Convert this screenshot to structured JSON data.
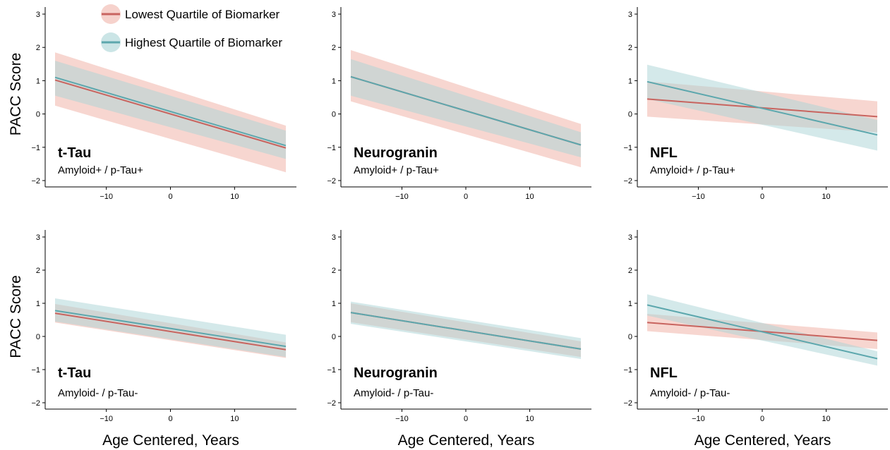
{
  "colors": {
    "low_line": "#c8645f",
    "low_band": "#f0b4aa",
    "high_line": "#5ca7ad",
    "high_band": "#a9d3d6"
  },
  "legend": {
    "items": [
      {
        "label": "Lowest Quartile of Biomarker",
        "series": "low"
      },
      {
        "label": "Highest Quartile of Biomarker",
        "series": "high"
      }
    ]
  },
  "chart_data": [
    {
      "type": "line",
      "title": "t-Tau",
      "subtitle": "Amyloid+ / p-Tau+",
      "ylabel": "PACC Score",
      "xlabel": "",
      "xlim": [
        -18,
        18
      ],
      "ylim": [
        -2,
        3
      ],
      "xticks": [
        -10,
        0,
        10
      ],
      "yticks": [
        -2,
        -1,
        0,
        1,
        2,
        3
      ],
      "series": [
        {
          "key": "low",
          "x": [
            -18,
            18
          ],
          "y": [
            1.02,
            -1.02
          ],
          "lower": [
            0.25,
            -1.75
          ],
          "upper": [
            1.85,
            -0.35
          ]
        },
        {
          "key": "high",
          "x": [
            -18,
            18
          ],
          "y": [
            1.1,
            -0.95
          ],
          "lower": [
            0.55,
            -1.35
          ],
          "upper": [
            1.6,
            -0.5
          ]
        }
      ]
    },
    {
      "type": "line",
      "title": "Neurogranin",
      "subtitle": "Amyloid+ / p-Tau+",
      "ylabel": "",
      "xlabel": "",
      "xlim": [
        -18,
        18
      ],
      "ylim": [
        -2,
        3
      ],
      "xticks": [
        -10,
        0,
        10
      ],
      "yticks": [
        -2,
        -1,
        0,
        1,
        2,
        3
      ],
      "series": [
        {
          "key": "low",
          "x": [
            -18,
            18
          ],
          "y": [
            1.12,
            -0.93
          ],
          "lower": [
            0.38,
            -1.6
          ],
          "upper": [
            1.92,
            -0.3
          ]
        },
        {
          "key": "high",
          "x": [
            -18,
            18
          ],
          "y": [
            1.12,
            -0.93
          ],
          "lower": [
            0.55,
            -1.3
          ],
          "upper": [
            1.65,
            -0.55
          ]
        }
      ]
    },
    {
      "type": "line",
      "title": "NFL",
      "subtitle": "Amyloid+ / p-Tau+",
      "ylabel": "",
      "xlabel": "",
      "xlim": [
        -18,
        18
      ],
      "ylim": [
        -2,
        3
      ],
      "xticks": [
        -10,
        0,
        10
      ],
      "yticks": [
        -2,
        -1,
        0,
        1,
        2,
        3
      ],
      "series": [
        {
          "key": "low",
          "x": [
            -18,
            18
          ],
          "y": [
            0.45,
            -0.08
          ],
          "lower": [
            -0.08,
            -0.55
          ],
          "upper": [
            0.98,
            0.38
          ]
        },
        {
          "key": "high",
          "x": [
            -18,
            18
          ],
          "y": [
            0.97,
            -0.63
          ],
          "lower": [
            0.45,
            -1.1
          ],
          "upper": [
            1.48,
            -0.18
          ]
        }
      ]
    },
    {
      "type": "line",
      "title": "t-Tau",
      "subtitle": "Amyloid- / p-Tau-",
      "ylabel": "PACC Score",
      "xlabel": "Age Centered,  Years",
      "xlim": [
        -18,
        18
      ],
      "ylim": [
        -2,
        3
      ],
      "xticks": [
        -10,
        0,
        10
      ],
      "yticks": [
        -2,
        -1,
        0,
        1,
        2,
        3
      ],
      "series": [
        {
          "key": "low",
          "x": [
            -18,
            18
          ],
          "y": [
            0.7,
            -0.4
          ],
          "lower": [
            0.42,
            -0.65
          ],
          "upper": [
            0.98,
            -0.18
          ]
        },
        {
          "key": "high",
          "x": [
            -18,
            18
          ],
          "y": [
            0.78,
            -0.3
          ],
          "lower": [
            0.45,
            -0.62
          ],
          "upper": [
            1.15,
            0.05
          ]
        }
      ]
    },
    {
      "type": "line",
      "title": "Neurogranin",
      "subtitle": "Amyloid- / p-Tau-",
      "ylabel": "",
      "xlabel": "Age Centered,  Years",
      "xlim": [
        -18,
        18
      ],
      "ylim": [
        -2,
        3
      ],
      "xticks": [
        -10,
        0,
        10
      ],
      "yticks": [
        -2,
        -1,
        0,
        1,
        2,
        3
      ],
      "series": [
        {
          "key": "low",
          "x": [
            -18,
            18
          ],
          "y": [
            0.72,
            -0.38
          ],
          "lower": [
            0.43,
            -0.62
          ],
          "upper": [
            1.0,
            -0.15
          ]
        },
        {
          "key": "high",
          "x": [
            -18,
            18
          ],
          "y": [
            0.72,
            -0.38
          ],
          "lower": [
            0.38,
            -0.68
          ],
          "upper": [
            1.05,
            -0.05
          ]
        }
      ]
    },
    {
      "type": "line",
      "title": "NFL",
      "subtitle": "Amyloid- / p-Tau-",
      "ylabel": "",
      "xlabel": "Age Centered,  Years",
      "xlim": [
        -18,
        18
      ],
      "ylim": [
        -2,
        3
      ],
      "xticks": [
        -10,
        0,
        10
      ],
      "yticks": [
        -2,
        -1,
        0,
        1,
        2,
        3
      ],
      "series": [
        {
          "key": "low",
          "x": [
            -18,
            18
          ],
          "y": [
            0.42,
            -0.12
          ],
          "lower": [
            0.16,
            -0.38
          ],
          "upper": [
            0.68,
            0.12
          ]
        },
        {
          "key": "high",
          "x": [
            -18,
            18
          ],
          "y": [
            0.95,
            -0.67
          ],
          "lower": [
            0.63,
            -0.88
          ],
          "upper": [
            1.27,
            -0.45
          ]
        }
      ]
    }
  ]
}
